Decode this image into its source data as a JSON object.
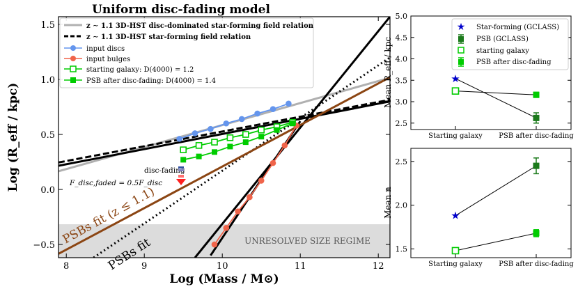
{
  "chart_data": [
    {
      "type": "line",
      "title": "Uniform disc-fading model",
      "xlabel": "Log (Mass / M⊙)",
      "ylabel": "Log (R_eff / kpc)",
      "xlim": [
        7.9,
        12.15
      ],
      "ylim": [
        -0.62,
        1.57
      ],
      "xticks": [
        8,
        9,
        10,
        11,
        12
      ],
      "yticks": [
        -0.5,
        0.0,
        0.5,
        1.0,
        1.5
      ],
      "ytick_labels": [
        "−0.5",
        "0.0",
        "0.5",
        "1.0",
        "1.5"
      ],
      "unresolved_band": {
        "y_max": -0.3,
        "label": "UNRESOLVED SIZE REGIME"
      },
      "lines": [
        {
          "name": "z ∼ 1.1 3D-HST disc-dominated star-forming field relation",
          "color": "#b0b0b0",
          "style": "solid",
          "x": [
            7.9,
            12.15
          ],
          "y": [
            0.165,
            1.015
          ]
        },
        {
          "name": "z ∼ 1.1 3D-HST star-forming field relation",
          "color": "#000000",
          "style": "dashed",
          "x": [
            7.9,
            12.15
          ],
          "y": [
            0.245,
            0.815
          ]
        },
        {
          "name": "solid black relation",
          "color": "#000000",
          "style": "solid",
          "x": [
            7.9,
            12.15
          ],
          "y": [
            0.215,
            0.8
          ]
        },
        {
          "name": "steep black line",
          "color": "#000000",
          "style": "solid",
          "x": [
            9.65,
            12.15
          ],
          "y": [
            -0.62,
            1.57
          ]
        },
        {
          "name": "PSBs fit",
          "color": "#000000",
          "style": "dotted",
          "x": [
            8.35,
            12.15
          ],
          "y": [
            -0.62,
            1.2
          ]
        },
        {
          "name": "PSBs fit (z ≤ 1.1)",
          "color": "#8b4513",
          "style": "solid",
          "x": [
            7.9,
            12.15
          ],
          "y": [
            -0.585,
            1.02
          ]
        },
        {
          "name": "bulge line",
          "color": "#000000",
          "style": "solid",
          "x": [
            9.85,
            11.0
          ],
          "y": [
            -0.6,
            0.62
          ]
        }
      ],
      "series": [
        {
          "name": "input discs",
          "color": "#6495ed",
          "marker": "filled-circle",
          "x": [
            9.45,
            9.65,
            9.85,
            10.05,
            10.25,
            10.45,
            10.65,
            10.85
          ],
          "y": [
            0.46,
            0.51,
            0.55,
            0.6,
            0.64,
            0.69,
            0.73,
            0.78
          ]
        },
        {
          "name": "input bulges",
          "color": "#f0644a",
          "marker": "filled-circle",
          "x": [
            9.9,
            10.05,
            10.2,
            10.35,
            10.5,
            10.65,
            10.8,
            10.95
          ],
          "y": [
            -0.5,
            -0.35,
            -0.2,
            -0.07,
            0.08,
            0.24,
            0.4,
            0.58
          ]
        },
        {
          "name": "starting galaxy: D(4000) = 1.2",
          "color": "#00cc00",
          "marker": "open-square",
          "x": [
            9.5,
            9.7,
            9.9,
            10.1,
            10.3,
            10.5,
            10.7,
            10.9
          ],
          "y": [
            0.36,
            0.4,
            0.43,
            0.47,
            0.5,
            0.54,
            0.57,
            0.61
          ]
        },
        {
          "name": "PSB after disc-fading: D(4000) = 1.4",
          "color": "#00cc00",
          "marker": "filled-square",
          "x": [
            9.5,
            9.7,
            9.9,
            10.1,
            10.3,
            10.5,
            10.7,
            10.9
          ],
          "y": [
            0.27,
            0.3,
            0.34,
            0.39,
            0.43,
            0.48,
            0.54,
            0.6
          ]
        }
      ],
      "legend": {
        "placement": "top-left",
        "entries": [
          "z ∼ 1.1 3D-HST disc-dominated star-forming field relation",
          "z ∼ 1.1 3D-HST star-forming field relation",
          "input discs",
          "input bulges",
          "starting galaxy: D(4000) = 1.2",
          "PSB after disc-fading: D(4000) = 1.4"
        ]
      },
      "annotations": {
        "disc_fading": "disc-fading",
        "fading_formula": "F_disc,faded = 0.5F_disc",
        "psb_fit": "PSBs fit",
        "psb_fit_z": "PSBs fit (z ≤ 1.1)"
      }
    },
    {
      "type": "line",
      "ylabel": "Mean R_eff / kpc",
      "categories": [
        "Starting galaxy",
        "PSB after disc-fading"
      ],
      "ylim": [
        2.35,
        5.0
      ],
      "yticks": [
        2.5,
        3.0,
        3.5,
        4.0,
        4.5,
        5.0
      ],
      "ytick_labels": [
        "2.5",
        "3.0",
        "3.5",
        "4.0",
        "4.5",
        "5.0"
      ],
      "series": [
        {
          "name": "Star-forming (GCLASS)",
          "color": "#0000cc",
          "marker": "star",
          "values": [
            3.54,
            null
          ]
        },
        {
          "name": "PSB (GCLASS)",
          "color": "#1b7a1b",
          "marker": "filled-square",
          "values": [
            null,
            2.62
          ],
          "errors": [
            null,
            0.12
          ]
        },
        {
          "name": "starting galaxy",
          "color": "#00cc00",
          "marker": "open-square",
          "values": [
            3.25,
            null
          ]
        },
        {
          "name": "PSB after disc-fading",
          "color": "#00cc00",
          "marker": "filled-square",
          "values": [
            null,
            3.16
          ],
          "errors": [
            null,
            0.06
          ]
        }
      ],
      "connectors": [
        [
          3.54,
          2.62
        ],
        [
          3.25,
          3.16
        ]
      ],
      "legend": {
        "placement": "top-right",
        "entries": [
          "Star-forming (GCLASS)",
          "PSB (GCLASS)",
          "starting galaxy",
          "PSB after disc-fading"
        ]
      }
    },
    {
      "type": "line",
      "ylabel": "Mean n",
      "categories": [
        "Starting galaxy",
        "PSB after disc-fading"
      ],
      "ylim": [
        1.4,
        2.65
      ],
      "yticks": [
        1.5,
        2.0,
        2.5
      ],
      "ytick_labels": [
        "1.5",
        "2.0",
        "2.5"
      ],
      "series": [
        {
          "name": "Star-forming (GCLASS)",
          "color": "#0000cc",
          "marker": "star",
          "values": [
            1.88,
            null
          ]
        },
        {
          "name": "PSB (GCLASS)",
          "color": "#1b7a1b",
          "marker": "filled-square",
          "values": [
            null,
            2.45
          ],
          "errors": [
            null,
            0.09
          ]
        },
        {
          "name": "starting galaxy",
          "color": "#00cc00",
          "marker": "open-square",
          "values": [
            1.48,
            null
          ]
        },
        {
          "name": "PSB after disc-fading",
          "color": "#00cc00",
          "marker": "filled-square",
          "values": [
            null,
            1.68
          ],
          "errors": [
            null,
            0.04
          ]
        }
      ],
      "connectors": [
        [
          1.88,
          2.45
        ],
        [
          1.48,
          1.68
        ]
      ]
    }
  ]
}
